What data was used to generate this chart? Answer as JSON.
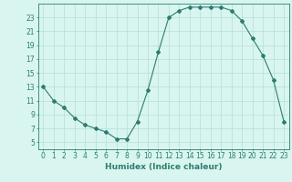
{
  "x": [
    0,
    1,
    2,
    3,
    4,
    5,
    6,
    7,
    8,
    9,
    10,
    11,
    12,
    13,
    14,
    15,
    16,
    17,
    18,
    19,
    20,
    21,
    22,
    23
  ],
  "y": [
    13,
    11,
    10,
    8.5,
    7.5,
    7,
    6.5,
    5.5,
    5.5,
    8,
    12.5,
    18,
    23,
    24,
    24.5,
    24.5,
    24.5,
    24.5,
    24,
    22.5,
    20,
    17.5,
    14,
    8
  ],
  "line_color": "#2d7d6f",
  "marker": "D",
  "marker_size": 2,
  "bg_color": "#d8f5f0",
  "grid_color": "#b8ddd8",
  "xlabel": "Humidex (Indice chaleur)",
  "xlim": [
    -0.5,
    23.5
  ],
  "ylim": [
    4,
    25
  ],
  "xticks": [
    0,
    1,
    2,
    3,
    4,
    5,
    6,
    7,
    8,
    9,
    10,
    11,
    12,
    13,
    14,
    15,
    16,
    17,
    18,
    19,
    20,
    21,
    22,
    23
  ],
  "yticks": [
    5,
    7,
    9,
    11,
    13,
    15,
    17,
    19,
    21,
    23
  ],
  "tick_color": "#2d7d6f",
  "label_fontsize": 6.5,
  "tick_fontsize": 5.5,
  "linewidth": 0.8
}
